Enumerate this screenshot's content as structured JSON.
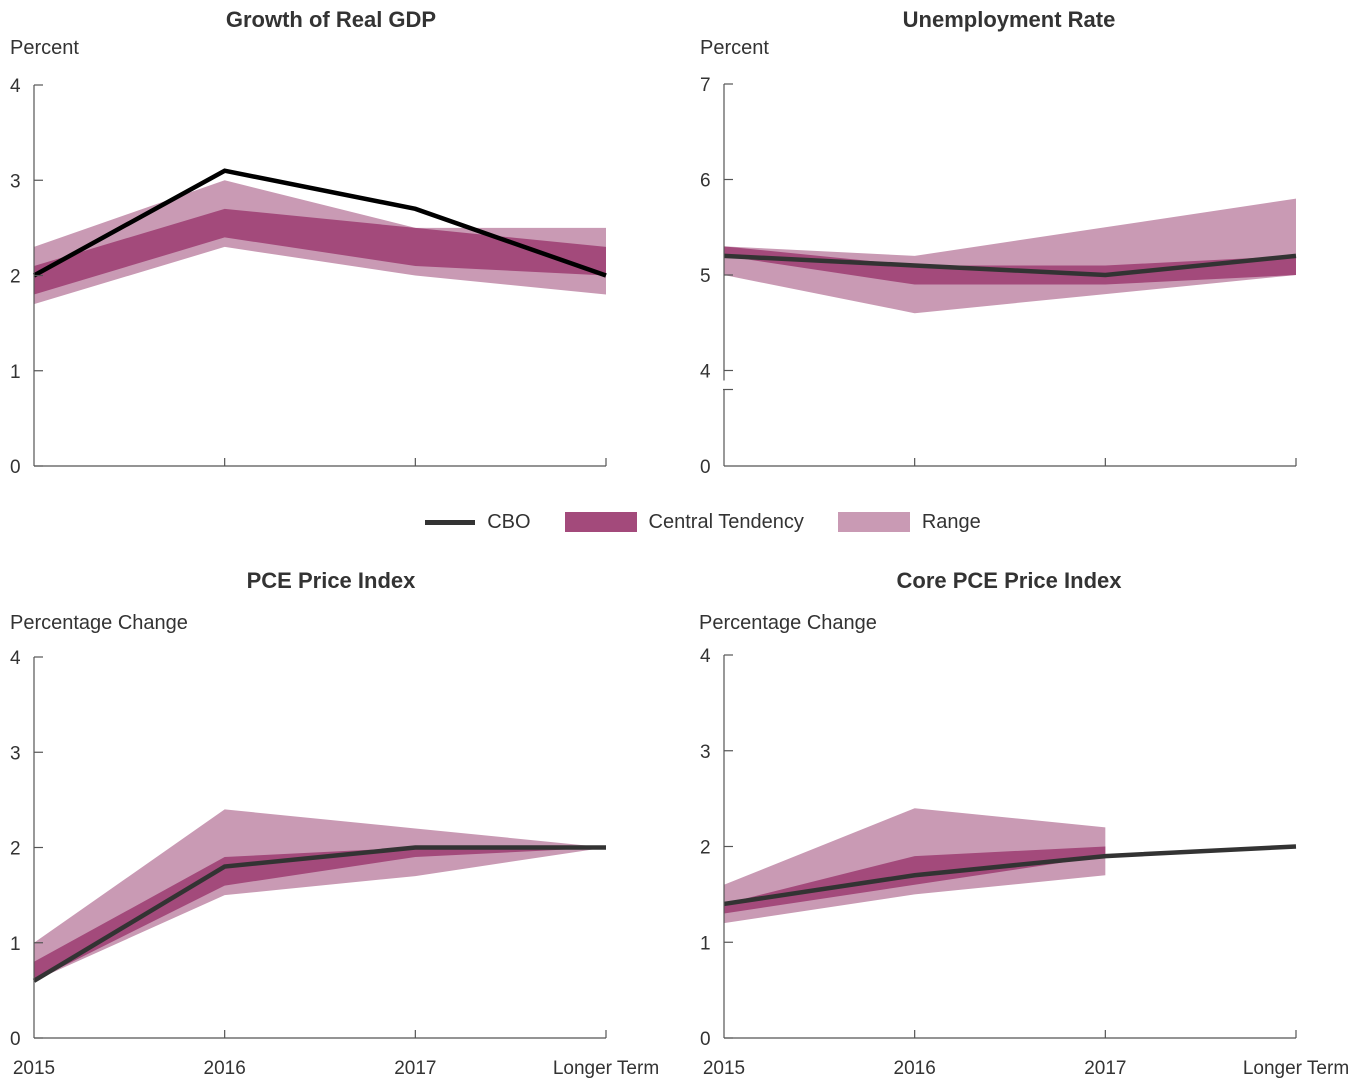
{
  "legend": {
    "cbo": "CBO",
    "central": "Central Tendency",
    "range": "Range"
  },
  "colors": {
    "cbo": "#333333",
    "central": "#a34a7b",
    "range": "#c99ab4",
    "axis": "#555555",
    "text": "#333333"
  },
  "chart_data": [
    {
      "type": "line",
      "title": "Growth of Real GDP",
      "ylabel": "Percent",
      "categories": [
        "2015",
        "2016",
        "2017",
        "Longer Term"
      ],
      "show_category_labels": false,
      "ylim": [
        0,
        4
      ],
      "yticks": [
        0,
        1,
        2,
        3,
        4
      ],
      "axis_break": false,
      "series": [
        {
          "name": "CBO",
          "values": [
            2.0,
            3.1,
            2.7,
            2.0
          ]
        },
        {
          "name": "Central Tendency",
          "low": [
            1.8,
            2.4,
            2.1,
            2.0
          ],
          "high": [
            2.1,
            2.7,
            2.5,
            2.3
          ]
        },
        {
          "name": "Range",
          "low": [
            1.7,
            2.3,
            2.0,
            1.8
          ],
          "high": [
            2.3,
            3.0,
            2.5,
            2.5
          ]
        }
      ]
    },
    {
      "type": "line",
      "title": "Unemployment Rate",
      "ylabel": "Percent",
      "categories": [
        "2015",
        "2016",
        "2017",
        "Longer Term"
      ],
      "show_category_labels": false,
      "ylim": [
        3,
        7
      ],
      "yticks": [
        4,
        5,
        6,
        7
      ],
      "bottom_tick": "0",
      "axis_break": true,
      "series": [
        {
          "name": "CBO",
          "values": [
            5.2,
            5.1,
            5.0,
            5.2
          ]
        },
        {
          "name": "Central Tendency",
          "low": [
            5.2,
            4.9,
            4.9,
            5.0
          ],
          "high": [
            5.3,
            5.1,
            5.1,
            5.2
          ]
        },
        {
          "name": "Range",
          "low": [
            5.0,
            4.6,
            4.8,
            5.0
          ],
          "high": [
            5.3,
            5.2,
            5.5,
            5.8
          ]
        }
      ]
    },
    {
      "type": "line",
      "title": "PCE Price Index",
      "ylabel": "Percentage Change",
      "categories": [
        "2015",
        "2016",
        "2017",
        "Longer Term"
      ],
      "show_category_labels": true,
      "ylim": [
        0,
        4
      ],
      "yticks": [
        0,
        1,
        2,
        3,
        4
      ],
      "axis_break": false,
      "series": [
        {
          "name": "CBO",
          "values": [
            0.6,
            1.8,
            2.0,
            2.0
          ]
        },
        {
          "name": "Central Tendency",
          "low": [
            0.6,
            1.6,
            1.9,
            2.0
          ],
          "high": [
            0.8,
            1.9,
            2.0,
            2.0
          ]
        },
        {
          "name": "Range",
          "low": [
            0.6,
            1.5,
            1.7,
            2.0
          ],
          "high": [
            1.0,
            2.4,
            2.2,
            2.0
          ]
        }
      ]
    },
    {
      "type": "line",
      "title": "Core PCE Price Index",
      "ylabel": "Percentage Change",
      "categories": [
        "2015",
        "2016",
        "2017",
        "Longer Term"
      ],
      "show_category_labels": true,
      "ylim": [
        0,
        4
      ],
      "yticks": [
        0,
        1,
        2,
        3,
        4
      ],
      "axis_break": false,
      "series": [
        {
          "name": "CBO",
          "values": [
            1.4,
            1.7,
            1.9,
            2.0
          ]
        },
        {
          "name": "Central Tendency",
          "low": [
            1.3,
            1.6,
            1.9,
            null
          ],
          "high": [
            1.4,
            1.9,
            2.0,
            null
          ]
        },
        {
          "name": "Range",
          "low": [
            1.2,
            1.5,
            1.7,
            null
          ],
          "high": [
            1.6,
            2.4,
            2.2,
            null
          ]
        }
      ]
    }
  ]
}
